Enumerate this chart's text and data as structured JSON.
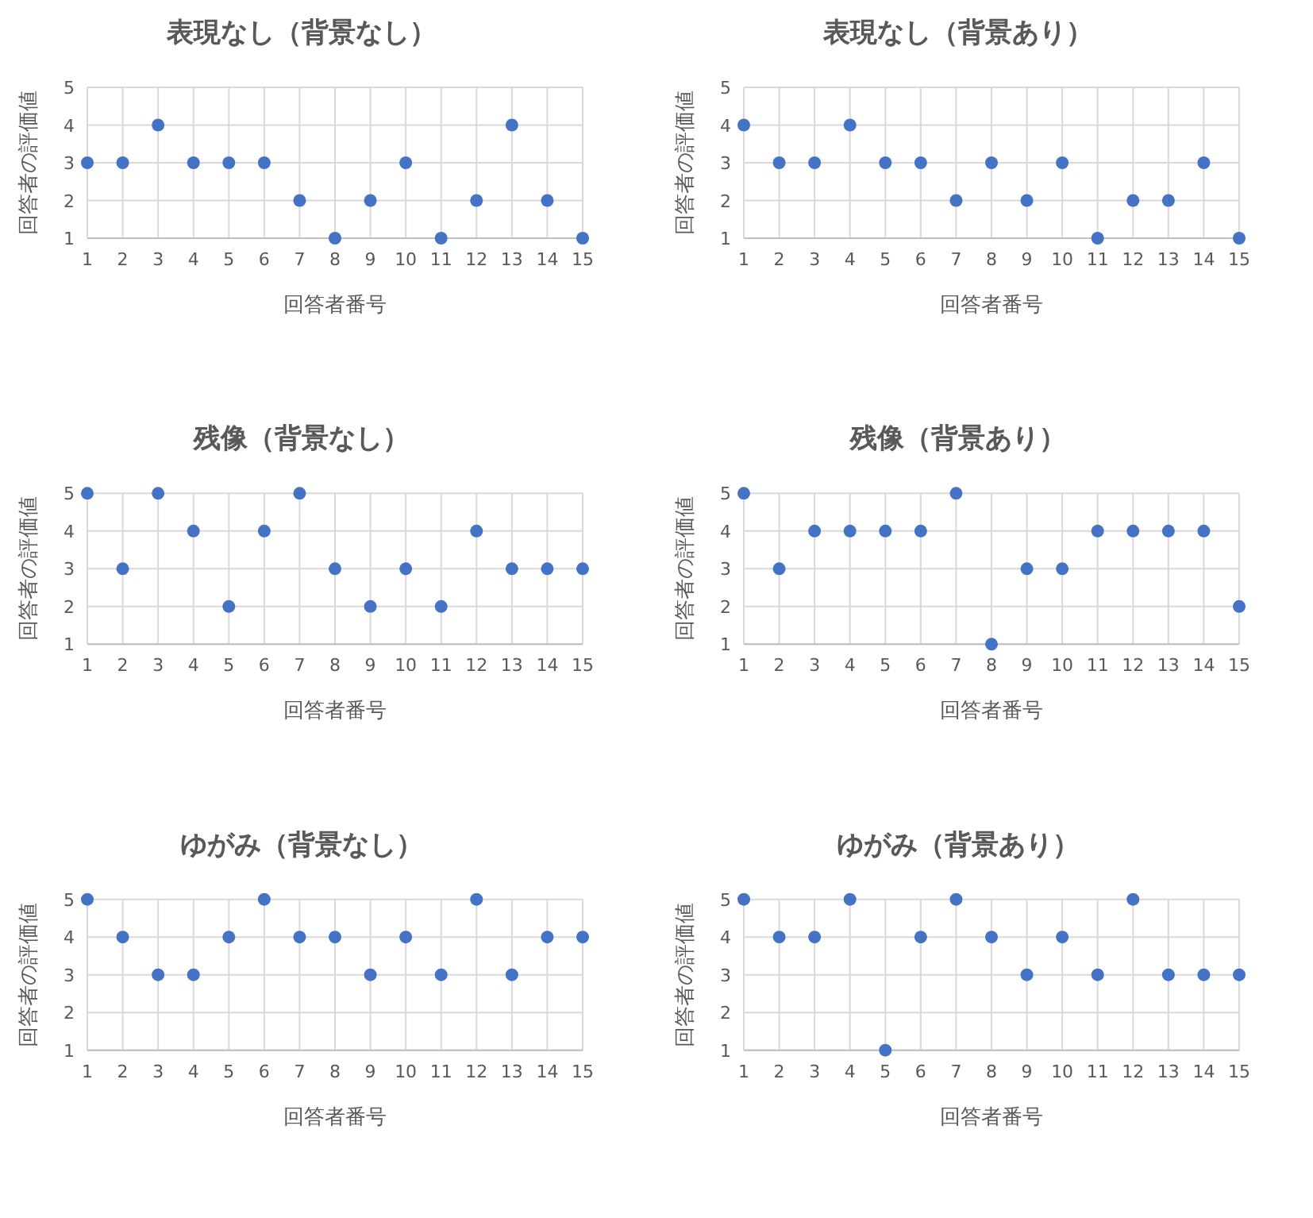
{
  "chart_data": [
    {
      "type": "scatter",
      "title": "表現なし（背景なし）",
      "xlabel": "回答者番号",
      "ylabel": "回答者の評価値",
      "x": [
        1,
        2,
        3,
        4,
        5,
        6,
        7,
        8,
        9,
        10,
        11,
        12,
        13,
        14,
        15
      ],
      "values": [
        3,
        3,
        4,
        3,
        3,
        3,
        2,
        1,
        2,
        3,
        1,
        2,
        4,
        2,
        1
      ],
      "color": "#4472c4",
      "xlim": [
        1,
        15
      ],
      "ylim": [
        1,
        5
      ],
      "xticks": [
        1,
        2,
        3,
        4,
        5,
        6,
        7,
        8,
        9,
        10,
        11,
        12,
        13,
        14,
        15
      ],
      "yticks": [
        1,
        2,
        3,
        4,
        5
      ],
      "grid": true,
      "marker": "circle"
    },
    {
      "type": "scatter",
      "title": "表現なし（背景あり）",
      "xlabel": "回答者番号",
      "ylabel": "回答者の評価値",
      "x": [
        1,
        2,
        3,
        4,
        5,
        6,
        7,
        8,
        9,
        10,
        11,
        12,
        13,
        14,
        15
      ],
      "values": [
        4,
        3,
        3,
        4,
        3,
        3,
        2,
        3,
        2,
        3,
        1,
        2,
        2,
        3,
        1
      ],
      "color": "#4472c4",
      "xlim": [
        1,
        15
      ],
      "ylim": [
        1,
        5
      ],
      "xticks": [
        1,
        2,
        3,
        4,
        5,
        6,
        7,
        8,
        9,
        10,
        11,
        12,
        13,
        14,
        15
      ],
      "yticks": [
        1,
        2,
        3,
        4,
        5
      ],
      "grid": true,
      "marker": "circle"
    },
    {
      "type": "scatter",
      "title": "残像（背景なし）",
      "xlabel": "回答者番号",
      "ylabel": "回答者の評価値",
      "x": [
        1,
        2,
        3,
        4,
        5,
        6,
        7,
        8,
        9,
        10,
        11,
        12,
        13,
        14,
        15
      ],
      "values": [
        5,
        3,
        5,
        4,
        2,
        4,
        5,
        3,
        2,
        3,
        2,
        4,
        3,
        3,
        3
      ],
      "color": "#4472c4",
      "xlim": [
        1,
        15
      ],
      "ylim": [
        1,
        5
      ],
      "xticks": [
        1,
        2,
        3,
        4,
        5,
        6,
        7,
        8,
        9,
        10,
        11,
        12,
        13,
        14,
        15
      ],
      "yticks": [
        1,
        2,
        3,
        4,
        5
      ],
      "grid": true,
      "marker": "circle"
    },
    {
      "type": "scatter",
      "title": "残像（背景あり）",
      "xlabel": "回答者番号",
      "ylabel": "回答者の評価値",
      "x": [
        1,
        2,
        3,
        4,
        5,
        6,
        7,
        8,
        9,
        10,
        11,
        12,
        13,
        14,
        15
      ],
      "values": [
        5,
        3,
        4,
        4,
        4,
        4,
        5,
        1,
        3,
        3,
        4,
        4,
        4,
        4,
        2
      ],
      "color": "#4472c4",
      "xlim": [
        1,
        15
      ],
      "ylim": [
        1,
        5
      ],
      "xticks": [
        1,
        2,
        3,
        4,
        5,
        6,
        7,
        8,
        9,
        10,
        11,
        12,
        13,
        14,
        15
      ],
      "yticks": [
        1,
        2,
        3,
        4,
        5
      ],
      "grid": true,
      "marker": "circle"
    },
    {
      "type": "scatter",
      "title": "ゆがみ（背景なし）",
      "xlabel": "回答者番号",
      "ylabel": "回答者の評価値",
      "x": [
        1,
        2,
        3,
        4,
        5,
        6,
        7,
        8,
        9,
        10,
        11,
        12,
        13,
        14,
        15
      ],
      "values": [
        5,
        4,
        3,
        3,
        4,
        5,
        4,
        4,
        3,
        4,
        3,
        5,
        3,
        4,
        4
      ],
      "color": "#4472c4",
      "xlim": [
        1,
        15
      ],
      "ylim": [
        1,
        5
      ],
      "xticks": [
        1,
        2,
        3,
        4,
        5,
        6,
        7,
        8,
        9,
        10,
        11,
        12,
        13,
        14,
        15
      ],
      "yticks": [
        1,
        2,
        3,
        4,
        5
      ],
      "grid": true,
      "marker": "circle"
    },
    {
      "type": "scatter",
      "title": "ゆがみ（背景あり）",
      "xlabel": "回答者番号",
      "ylabel": "回答者の評価値",
      "x": [
        1,
        2,
        3,
        4,
        5,
        6,
        7,
        8,
        9,
        10,
        11,
        12,
        13,
        14,
        15
      ],
      "values": [
        5,
        4,
        4,
        5,
        1,
        4,
        5,
        4,
        3,
        4,
        3,
        5,
        3,
        3,
        3
      ],
      "color": "#4472c4",
      "xlim": [
        1,
        15
      ],
      "ylim": [
        1,
        5
      ],
      "xticks": [
        1,
        2,
        3,
        4,
        5,
        6,
        7,
        8,
        9,
        10,
        11,
        12,
        13,
        14,
        15
      ],
      "yticks": [
        1,
        2,
        3,
        4,
        5
      ],
      "grid": true,
      "marker": "circle"
    }
  ]
}
